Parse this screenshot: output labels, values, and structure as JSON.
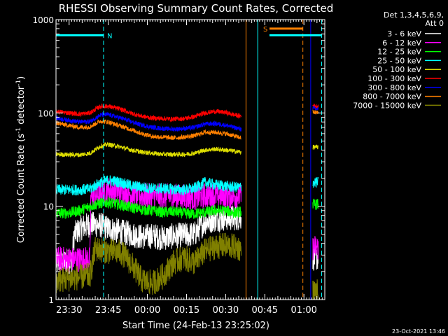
{
  "chart_data": {
    "type": "line",
    "title": "RHESSI Observing Summary Count Rates, Corrected",
    "xlabel": "Start Time (24-Feb-13 23:25:02)",
    "ylabel_main": "Corrected Count Rate (s",
    "ylabel_sup1": "-1",
    "ylabel_mid": " detector",
    "ylabel_sup2": "-1",
    "ylabel_end": ")",
    "yscale": "log",
    "ylim": [
      1,
      1000
    ],
    "xlim_minutes": [
      -5.03,
      98
    ],
    "x_ticks": [
      {
        "label": "23:30",
        "min": 0
      },
      {
        "label": "23:45",
        "min": 15
      },
      {
        "label": "00:00",
        "min": 30
      },
      {
        "label": "00:15",
        "min": 45
      },
      {
        "label": "00:30",
        "min": 60
      },
      {
        "label": "00:45",
        "min": 75
      },
      {
        "label": "01:00",
        "min": 90
      }
    ],
    "y_ticks": [
      "1",
      "10",
      "100",
      "1000"
    ],
    "legend_header": [
      "Det 1,3,4,5,6,9,",
      "Att 0"
    ],
    "legend_placement": "right",
    "series": [
      {
        "name": "3 - 6 keV",
        "color": "#ffffff",
        "pts": [
          [
            -5,
            2.5
          ],
          [
            1,
            2.6
          ],
          [
            2,
            5
          ],
          [
            5,
            6
          ],
          [
            8,
            6.4
          ],
          [
            12,
            6.3
          ],
          [
            15,
            5.8
          ],
          [
            20,
            5.3
          ],
          [
            24,
            5
          ],
          [
            28,
            4.7
          ],
          [
            32,
            4.8
          ],
          [
            36,
            4.6
          ],
          [
            40,
            4.8
          ],
          [
            44,
            4.9
          ],
          [
            48,
            5
          ],
          [
            52,
            6.8
          ],
          [
            56,
            7.3
          ],
          [
            60,
            7.5
          ],
          [
            63,
            7.5
          ],
          [
            66,
            7.6
          ]
        ],
        "late": [
          [
            93.4,
            2.8
          ],
          [
            95.5,
            2.8
          ]
        ]
      },
      {
        "name": "6 - 12 keV",
        "color": "#ff00ff",
        "pts": [
          [
            -5,
            2.7
          ],
          [
            8,
            2.7
          ],
          [
            8.3,
            12.5
          ],
          [
            12,
            13.5
          ],
          [
            15,
            15
          ],
          [
            20,
            14.5
          ],
          [
            24,
            13.5
          ],
          [
            28,
            13
          ],
          [
            32,
            12.8
          ],
          [
            36,
            12.8
          ],
          [
            40,
            12.8
          ],
          [
            44,
            12.6
          ],
          [
            48,
            12.4
          ],
          [
            52,
            13
          ],
          [
            56,
            13.2
          ],
          [
            60,
            13
          ],
          [
            63,
            12.9
          ],
          [
            66,
            13
          ]
        ],
        "late": [
          [
            93.4,
            3.6
          ],
          [
            95.5,
            3.6
          ]
        ]
      },
      {
        "name": "12 - 25 keV",
        "color": "#00ff00",
        "pts": [
          [
            -5,
            8.4
          ],
          [
            0,
            8.5
          ],
          [
            4,
            9
          ],
          [
            8,
            10
          ],
          [
            12,
            10.8
          ],
          [
            15,
            11
          ],
          [
            20,
            10.3
          ],
          [
            24,
            9.7
          ],
          [
            28,
            9.2
          ],
          [
            32,
            9
          ],
          [
            36,
            8.6
          ],
          [
            40,
            8.8
          ],
          [
            44,
            8.4
          ],
          [
            48,
            8.3
          ],
          [
            52,
            8.6
          ],
          [
            56,
            9
          ],
          [
            60,
            9
          ],
          [
            63,
            8.5
          ],
          [
            66,
            8.8
          ]
        ],
        "late": [
          [
            93.4,
            10.5
          ],
          [
            95.5,
            10.5
          ]
        ]
      },
      {
        "name": "25 - 50 keV",
        "color": "#00ffff",
        "pts": [
          [
            -5,
            15
          ],
          [
            4,
            15
          ],
          [
            8,
            15.3
          ],
          [
            12,
            18
          ],
          [
            15,
            19
          ],
          [
            20,
            18
          ],
          [
            24,
            16.5
          ],
          [
            28,
            16
          ],
          [
            32,
            15.5
          ],
          [
            36,
            15.5
          ],
          [
            40,
            15.2
          ],
          [
            44,
            15
          ],
          [
            48,
            15.5
          ],
          [
            52,
            18
          ],
          [
            56,
            17
          ],
          [
            60,
            16.5
          ],
          [
            63,
            16
          ],
          [
            66,
            16
          ]
        ],
        "late": [
          [
            93.4,
            18
          ],
          [
            95.5,
            18
          ]
        ]
      },
      {
        "name": "50 - 100 keV",
        "color": "#dddd00",
        "pts": [
          [
            -5,
            36
          ],
          [
            4,
            35.5
          ],
          [
            8,
            37
          ],
          [
            12,
            44
          ],
          [
            15,
            46
          ],
          [
            20,
            43
          ],
          [
            24,
            40
          ],
          [
            28,
            38
          ],
          [
            32,
            37
          ],
          [
            36,
            36
          ],
          [
            40,
            36
          ],
          [
            44,
            36
          ],
          [
            48,
            37
          ],
          [
            52,
            40
          ],
          [
            56,
            41
          ],
          [
            60,
            40
          ],
          [
            63,
            39
          ],
          [
            66,
            38
          ]
        ],
        "late": [
          [
            93.4,
            43
          ],
          [
            95.5,
            43
          ]
        ]
      },
      {
        "name": "100 - 300 keV",
        "color": "#ff0000",
        "pts": [
          [
            -5,
            104
          ],
          [
            4,
            97
          ],
          [
            8,
            100
          ],
          [
            12,
            118
          ],
          [
            15,
            118
          ],
          [
            20,
            109
          ],
          [
            24,
            99
          ],
          [
            28,
            92
          ],
          [
            32,
            88
          ],
          [
            36,
            87
          ],
          [
            40,
            86
          ],
          [
            44,
            87
          ],
          [
            48,
            91
          ],
          [
            52,
            100
          ],
          [
            56,
            104
          ],
          [
            60,
            101
          ],
          [
            63,
            96
          ],
          [
            66,
            92
          ]
        ],
        "late": [
          [
            93.4,
            120
          ],
          [
            95.5,
            118
          ]
        ]
      },
      {
        "name": "300 - 800 keV",
        "color": "#0000ff",
        "pts": [
          [
            -5,
            88
          ],
          [
            4,
            80
          ],
          [
            8,
            81
          ],
          [
            12,
            95
          ],
          [
            15,
            96
          ],
          [
            20,
            88
          ],
          [
            24,
            80
          ],
          [
            28,
            74
          ],
          [
            32,
            70
          ],
          [
            36,
            68
          ],
          [
            40,
            67
          ],
          [
            44,
            68
          ],
          [
            48,
            70
          ],
          [
            52,
            76
          ],
          [
            56,
            77
          ],
          [
            60,
            74
          ],
          [
            63,
            70
          ],
          [
            66,
            67
          ]
        ],
        "late": [
          [
            93.4,
            112
          ],
          [
            95.5,
            110
          ]
        ]
      },
      {
        "name": "800 - 7000 keV",
        "color": "#ff8000",
        "pts": [
          [
            -5,
            78
          ],
          [
            4,
            70
          ],
          [
            8,
            71
          ],
          [
            12,
            82
          ],
          [
            15,
            80
          ],
          [
            20,
            72
          ],
          [
            24,
            66
          ],
          [
            28,
            60
          ],
          [
            32,
            56
          ],
          [
            36,
            55
          ],
          [
            40,
            54
          ],
          [
            44,
            55
          ],
          [
            48,
            57
          ],
          [
            52,
            62
          ],
          [
            56,
            62
          ],
          [
            60,
            60
          ],
          [
            63,
            57
          ],
          [
            66,
            54
          ]
        ],
        "late": [
          [
            93.4,
            102
          ],
          [
            95.5,
            100
          ]
        ]
      },
      {
        "name": "7000 - 15000 keV",
        "color": "#808000",
        "pts": [
          [
            -5,
            1.6
          ],
          [
            8,
            1.8
          ],
          [
            10,
            3.5
          ],
          [
            15,
            3.3
          ],
          [
            20,
            3.2
          ],
          [
            24,
            2.4
          ],
          [
            28,
            1.6
          ],
          [
            32,
            1.5
          ],
          [
            36,
            1.8
          ],
          [
            40,
            2.5
          ],
          [
            44,
            2.8
          ],
          [
            48,
            2.5
          ],
          [
            52,
            3.3
          ],
          [
            56,
            3.7
          ],
          [
            60,
            3.8
          ],
          [
            63,
            3.7
          ],
          [
            66,
            3.5
          ]
        ],
        "late": [
          [
            93.4,
            1.2
          ],
          [
            95.5,
            1.2
          ]
        ]
      }
    ],
    "flag_bars": [
      {
        "label": "N",
        "color": "#00ffff",
        "x0": -5.03,
        "x1": 13.2,
        "y": 680
      },
      {
        "label": "S",
        "color": "#ff8000",
        "x0": 76.8,
        "x1": 89.6,
        "y": 800
      },
      {
        "label": "",
        "color": "#00ffff",
        "x0": 76.8,
        "x1": 96.8,
        "y": 680
      }
    ],
    "vlines": [
      {
        "x": 13.2,
        "color": "#00ffff",
        "dash": true
      },
      {
        "x": 67.8,
        "color": "#ff8000",
        "dash": false
      },
      {
        "x": 72.3,
        "color": "#00ffff",
        "dash": false
      },
      {
        "x": 89.6,
        "color": "#ff8000",
        "dash": true
      },
      {
        "x": 92.6,
        "color": "#0000ff",
        "dash": false
      },
      {
        "x": 96.8,
        "color": "#00ffff",
        "dash": true
      }
    ],
    "timestamp": "23-Oct-2021 13:46"
  }
}
